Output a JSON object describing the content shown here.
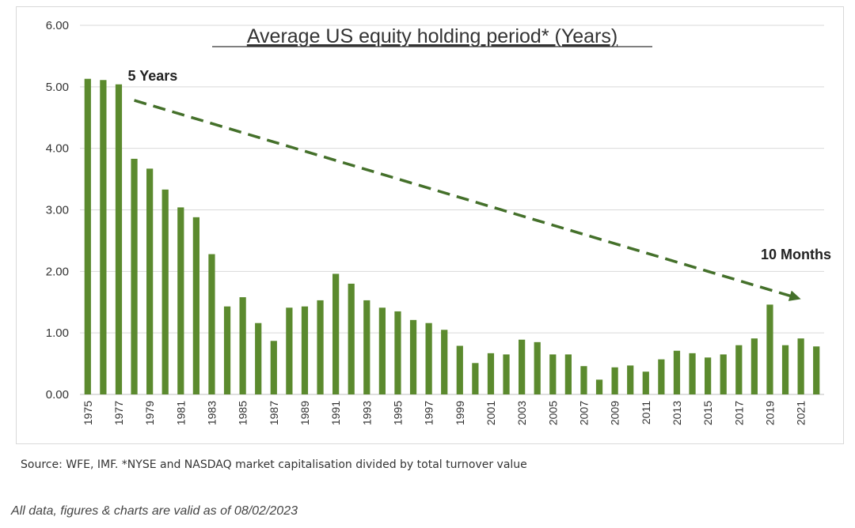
{
  "chart_data": {
    "type": "bar",
    "title": "Average US equity holding period* (Years)",
    "xlabel": "",
    "ylabel": "",
    "ylim": [
      0,
      6
    ],
    "yticks": [
      "0.00",
      "1.00",
      "2.00",
      "3.00",
      "4.00",
      "5.00",
      "6.00"
    ],
    "grid": true,
    "bar_color": "#5b8a2e",
    "trend_color": "#44702a",
    "categories": [
      "1975",
      "1976",
      "1977",
      "1978",
      "1979",
      "1980",
      "1981",
      "1982",
      "1983",
      "1984",
      "1985",
      "1986",
      "1987",
      "1988",
      "1989",
      "1990",
      "1991",
      "1992",
      "1993",
      "1994",
      "1995",
      "1996",
      "1997",
      "1998",
      "1999",
      "2000",
      "2001",
      "2002",
      "2003",
      "2004",
      "2005",
      "2006",
      "2007",
      "2008",
      "2009",
      "2010",
      "2011",
      "2012",
      "2013",
      "2014",
      "2015",
      "2016",
      "2017",
      "2018",
      "2019",
      "2020",
      "2021",
      "2022"
    ],
    "tick_labels": [
      "1975",
      "1977",
      "1979",
      "1981",
      "1983",
      "1985",
      "1987",
      "1989",
      "1991",
      "1993",
      "1995",
      "1997",
      "1999",
      "2001",
      "2003",
      "2005",
      "2007",
      "2009",
      "2011",
      "2013",
      "2015",
      "2017",
      "2019",
      "2021"
    ],
    "values": [
      5.13,
      5.11,
      5.04,
      3.83,
      3.67,
      3.33,
      3.04,
      2.88,
      2.28,
      1.43,
      1.58,
      1.16,
      0.87,
      1.41,
      1.43,
      1.53,
      1.96,
      1.8,
      1.53,
      1.41,
      1.35,
      1.21,
      1.16,
      1.05,
      0.79,
      0.51,
      0.67,
      0.65,
      0.89,
      0.85,
      0.65,
      0.65,
      0.46,
      0.24,
      0.44,
      0.47,
      0.37,
      0.57,
      0.71,
      0.67,
      0.6,
      0.65,
      0.8,
      0.91,
      1.46,
      0.8,
      0.91,
      0.78
    ],
    "annotations": [
      {
        "text": "5 Years",
        "x": "1978",
        "y": 5.1
      },
      {
        "text": "10 Months",
        "x": "2020",
        "y": 2.2
      }
    ],
    "trend_line": {
      "start": {
        "x": "1978",
        "y": 4.78
      },
      "end": {
        "x": "2021",
        "y": 1.55
      }
    }
  },
  "footer": {
    "source": "Source: WFE, IMF. *NYSE and NASDAQ market capitalisation divided by total turnover value",
    "disclaimer": "All data, figures & charts are valid as of 08/02/2023"
  }
}
